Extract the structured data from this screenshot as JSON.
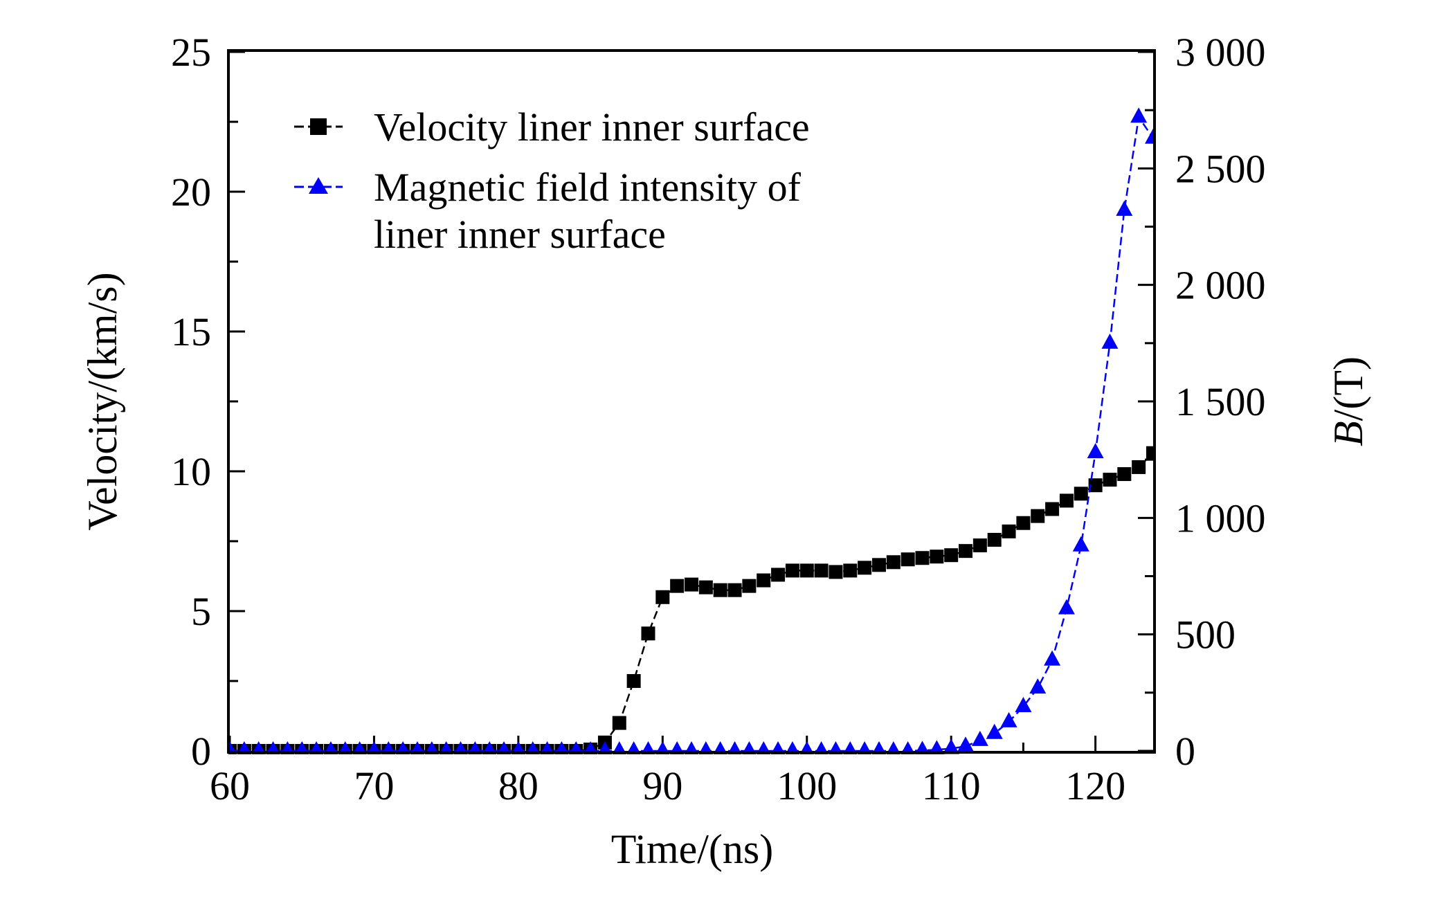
{
  "chart_data": {
    "type": "line",
    "title": "",
    "xlabel": "Time/(ns)",
    "ylabel": "Velocity/(km/s)",
    "y2label_italic": "B",
    "y2label_rest": "/(T)",
    "xlim": [
      60,
      124
    ],
    "ylim": [
      0,
      25
    ],
    "y2lim": [
      0,
      3000
    ],
    "xticks": [
      "60",
      "70",
      "80",
      "90",
      "100",
      "110",
      "120"
    ],
    "xtick_values": [
      60,
      70,
      80,
      90,
      100,
      110,
      120
    ],
    "yticks": [
      "0",
      "5",
      "10",
      "15",
      "20",
      "25"
    ],
    "ytick_values": [
      0,
      5,
      10,
      15,
      20,
      25
    ],
    "y2ticks": [
      "0",
      "500",
      "1 000",
      "1 500",
      "2 000",
      "2 500",
      "3 000"
    ],
    "y2tick_values": [
      0,
      500,
      1000,
      1500,
      2000,
      2500,
      3000
    ],
    "legend": {
      "placement": "top-left",
      "entries": [
        {
          "lines": [
            "Velocity liner inner surface"
          ]
        },
        {
          "lines": [
            "Magnetic field intensity of",
            "liner inner surface"
          ]
        }
      ]
    },
    "series": [
      {
        "name": "Velocity liner inner surface",
        "axis": "left",
        "color": "#000000",
        "marker": "square",
        "x": [
          60,
          61,
          62,
          63,
          64,
          65,
          66,
          67,
          68,
          69,
          70,
          71,
          72,
          73,
          74,
          75,
          76,
          77,
          78,
          79,
          80,
          81,
          82,
          83,
          84,
          85,
          86,
          87,
          88,
          89,
          90,
          91,
          92,
          93,
          94,
          95,
          96,
          97,
          98,
          99,
          100,
          101,
          102,
          103,
          104,
          105,
          106,
          107,
          108,
          109,
          110,
          111,
          112,
          113,
          114,
          115,
          116,
          117,
          118,
          119,
          120,
          121,
          122,
          123,
          124
        ],
        "values": [
          0,
          0,
          0,
          0,
          0,
          0,
          0,
          0,
          0,
          0,
          0,
          0,
          0,
          0,
          0,
          0,
          0,
          0,
          0,
          0,
          0,
          0,
          0,
          0,
          0,
          0.05,
          0.3,
          1.0,
          2.5,
          4.2,
          5.5,
          5.9,
          5.95,
          5.85,
          5.75,
          5.75,
          5.9,
          6.1,
          6.3,
          6.45,
          6.45,
          6.45,
          6.4,
          6.45,
          6.55,
          6.65,
          6.75,
          6.85,
          6.9,
          6.95,
          7.0,
          7.15,
          7.35,
          7.55,
          7.85,
          8.15,
          8.4,
          8.65,
          8.95,
          9.2,
          9.5,
          9.7,
          9.9,
          10.15,
          10.65
        ]
      },
      {
        "name": "Magnetic field intensity of liner inner surface",
        "axis": "right",
        "color": "#0000ff",
        "marker": "triangle",
        "x": [
          60,
          61,
          62,
          63,
          64,
          65,
          66,
          67,
          68,
          69,
          70,
          71,
          72,
          73,
          74,
          75,
          76,
          77,
          78,
          79,
          80,
          81,
          82,
          83,
          84,
          85,
          86,
          87,
          88,
          89,
          90,
          91,
          92,
          93,
          94,
          95,
          96,
          97,
          98,
          99,
          100,
          101,
          102,
          103,
          104,
          105,
          106,
          107,
          108,
          109,
          110,
          111,
          112,
          113,
          114,
          115,
          116,
          117,
          118,
          119,
          120,
          121,
          122,
          123,
          124
        ],
        "values": [
          0,
          0,
          0,
          0,
          0,
          0,
          0,
          0,
          0,
          0,
          0,
          0,
          0,
          0,
          0,
          0,
          0,
          0,
          0,
          0,
          0,
          0,
          0,
          0,
          0,
          0,
          0,
          0,
          0,
          0,
          0,
          0,
          0,
          0,
          0,
          0,
          0,
          0,
          0,
          0,
          0,
          0,
          0,
          0,
          0,
          0,
          0,
          0,
          2,
          5,
          10,
          20,
          45,
          75,
          125,
          190,
          270,
          390,
          610,
          880,
          1280,
          1750,
          2320,
          2720,
          2630
        ]
      }
    ]
  }
}
